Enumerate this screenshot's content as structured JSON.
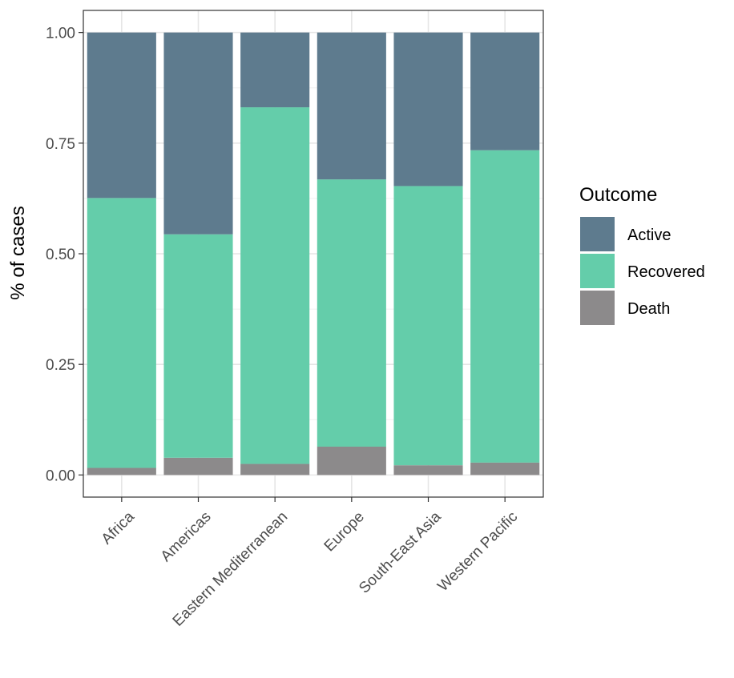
{
  "chart_data": {
    "type": "bar",
    "stacked": true,
    "categories": [
      "Africa",
      "Americas",
      "Eastern Mediterranean",
      "Europe",
      "South-East Asia",
      "Western Pacific"
    ],
    "series": [
      {
        "name": "Death",
        "values": [
          0.016,
          0.039,
          0.025,
          0.064,
          0.022,
          0.028
        ]
      },
      {
        "name": "Recovered",
        "values": [
          0.61,
          0.505,
          0.806,
          0.604,
          0.631,
          0.706
        ]
      },
      {
        "name": "Active",
        "values": [
          0.374,
          0.456,
          0.169,
          0.332,
          0.347,
          0.266
        ]
      }
    ],
    "ylabel": "% of cases",
    "xlabel": "",
    "ylim": [
      -0.05,
      1.05
    ],
    "yticks": [
      0.0,
      0.25,
      0.5,
      0.75,
      1.0
    ],
    "ytick_labels": [
      "0.00",
      "0.25",
      "0.50",
      "0.75",
      "1.00"
    ],
    "grid": true,
    "legend": {
      "title": "Outcome",
      "position": "right",
      "entries": [
        "Active",
        "Recovered",
        "Death"
      ]
    },
    "colors": {
      "Active": "#5e7b8e",
      "Recovered": "#64cdaa",
      "Death": "#8c8a8b"
    }
  }
}
